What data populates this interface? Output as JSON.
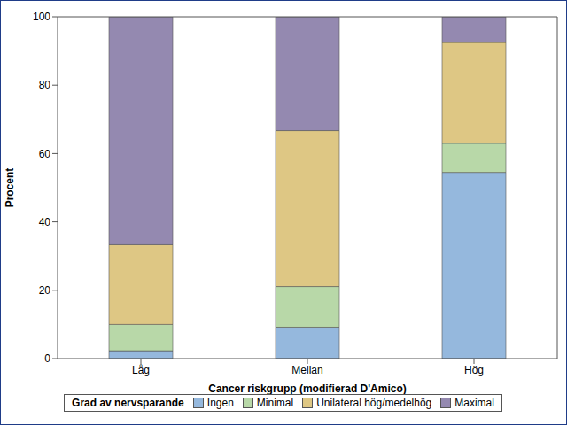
{
  "chart_data": {
    "type": "bar",
    "stacked": true,
    "x_label": "Cancer riskgrupp (modifierad D'Amico)",
    "y_label": "Procent",
    "legend_title": "Grad av nervsparande",
    "legend": "bottom",
    "grid": false,
    "categories": [
      "Låg",
      "Mellan",
      "Hög"
    ],
    "series": [
      {
        "name": "Ingen",
        "color": "#95b8dd",
        "values": [
          2.3,
          9.2,
          54.5
        ]
      },
      {
        "name": "Minimal",
        "color": "#b8d8a8",
        "values": [
          7.7,
          11.9,
          8.5
        ]
      },
      {
        "name": "Unilateral hög/medelhög",
        "color": "#dec784",
        "values": [
          23.3,
          45.6,
          29.5
        ]
      },
      {
        "name": "Maximal",
        "color": "#9489b0",
        "values": [
          66.7,
          33.3,
          7.5
        ]
      }
    ],
    "ylim": [
      0,
      100
    ],
    "yticks": [
      0,
      20,
      40,
      60,
      80,
      100
    ]
  }
}
